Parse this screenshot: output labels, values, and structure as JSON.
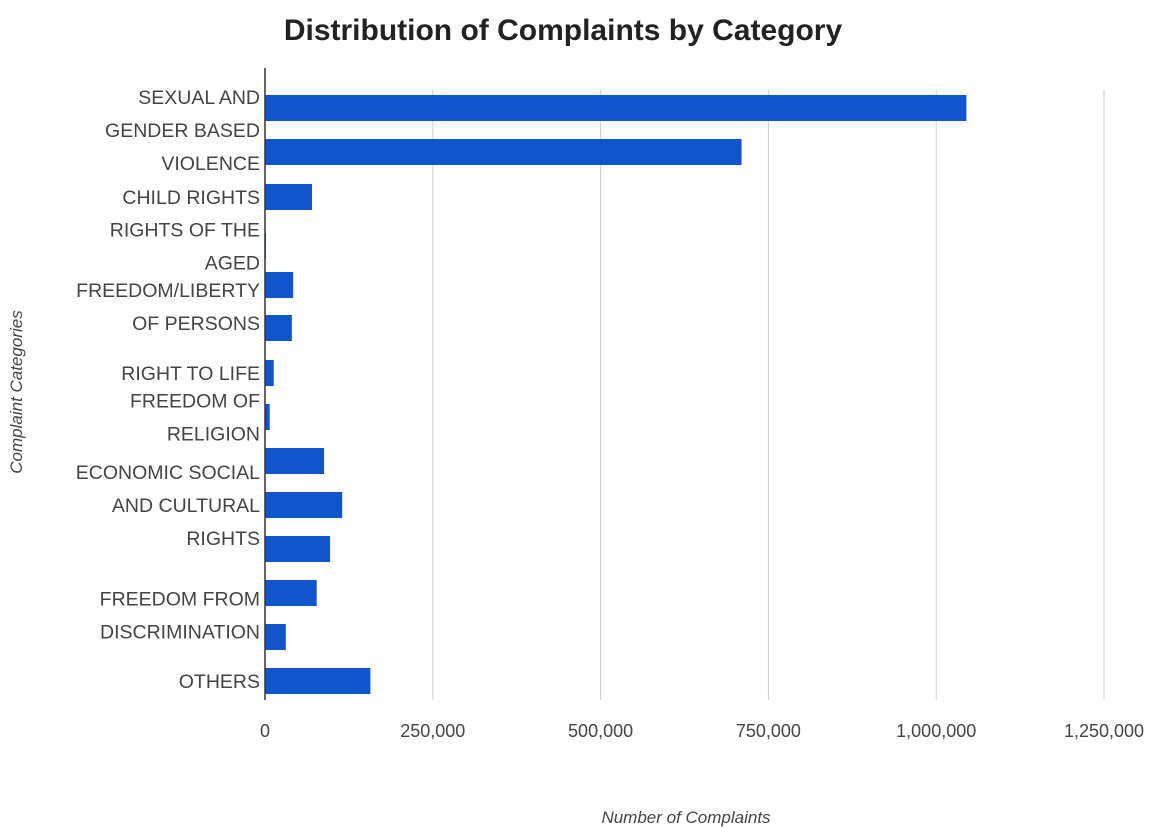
{
  "chart_data": {
    "type": "bar",
    "orientation": "horizontal",
    "title": "Distribution of Complaints by Category",
    "xlabel": "Number of Complaints",
    "ylabel": "Complaint Categories",
    "xlim": [
      0,
      1250000
    ],
    "xticks": [
      {
        "value": 0,
        "label": "0"
      },
      {
        "value": 250000,
        "label": "250,000"
      },
      {
        "value": 500000,
        "label": "500,000"
      },
      {
        "value": 750000,
        "label": "750,000"
      },
      {
        "value": 1000000,
        "label": "1,000,000"
      },
      {
        "value": 1250000,
        "label": "1,250,000"
      }
    ],
    "grid": true,
    "legend": "none",
    "bar_color": "#1155cc",
    "values": [
      1045000,
      710000,
      70000,
      1500,
      42000,
      40000,
      13000,
      7000,
      88000,
      115000,
      97000,
      77000,
      31000,
      157000
    ],
    "category_labels": [
      {
        "lines": [
          "SEXUAL AND",
          "GENDER BASED",
          "VIOLENCE"
        ],
        "bar_start": 0,
        "bar_end": 1
      },
      {
        "lines": [
          "CHILD RIGHTS"
        ],
        "bar_start": 2,
        "bar_end": 2
      },
      {
        "lines": [
          "RIGHTS OF THE",
          "AGED"
        ],
        "bar_start": 3,
        "bar_end": 3
      },
      {
        "lines": [
          "FREEDOM/LIBERTY",
          "OF PERSONS"
        ],
        "bar_start": 4,
        "bar_end": 5
      },
      {
        "lines": [
          "RIGHT TO LIFE"
        ],
        "bar_start": 6,
        "bar_end": 6
      },
      {
        "lines": [
          "FREEDOM OF",
          "RELIGION"
        ],
        "bar_start": 7,
        "bar_end": 7
      },
      {
        "lines": [
          "ECONOMIC SOCIAL",
          "AND CULTURAL",
          "RIGHTS"
        ],
        "bar_start": 8,
        "bar_end": 10
      },
      {
        "lines": [
          "FREEDOM FROM",
          "DISCRIMINATION"
        ],
        "bar_start": 11,
        "bar_end": 12
      },
      {
        "lines": [
          "OTHERS"
        ],
        "bar_start": 13,
        "bar_end": 13
      }
    ]
  }
}
